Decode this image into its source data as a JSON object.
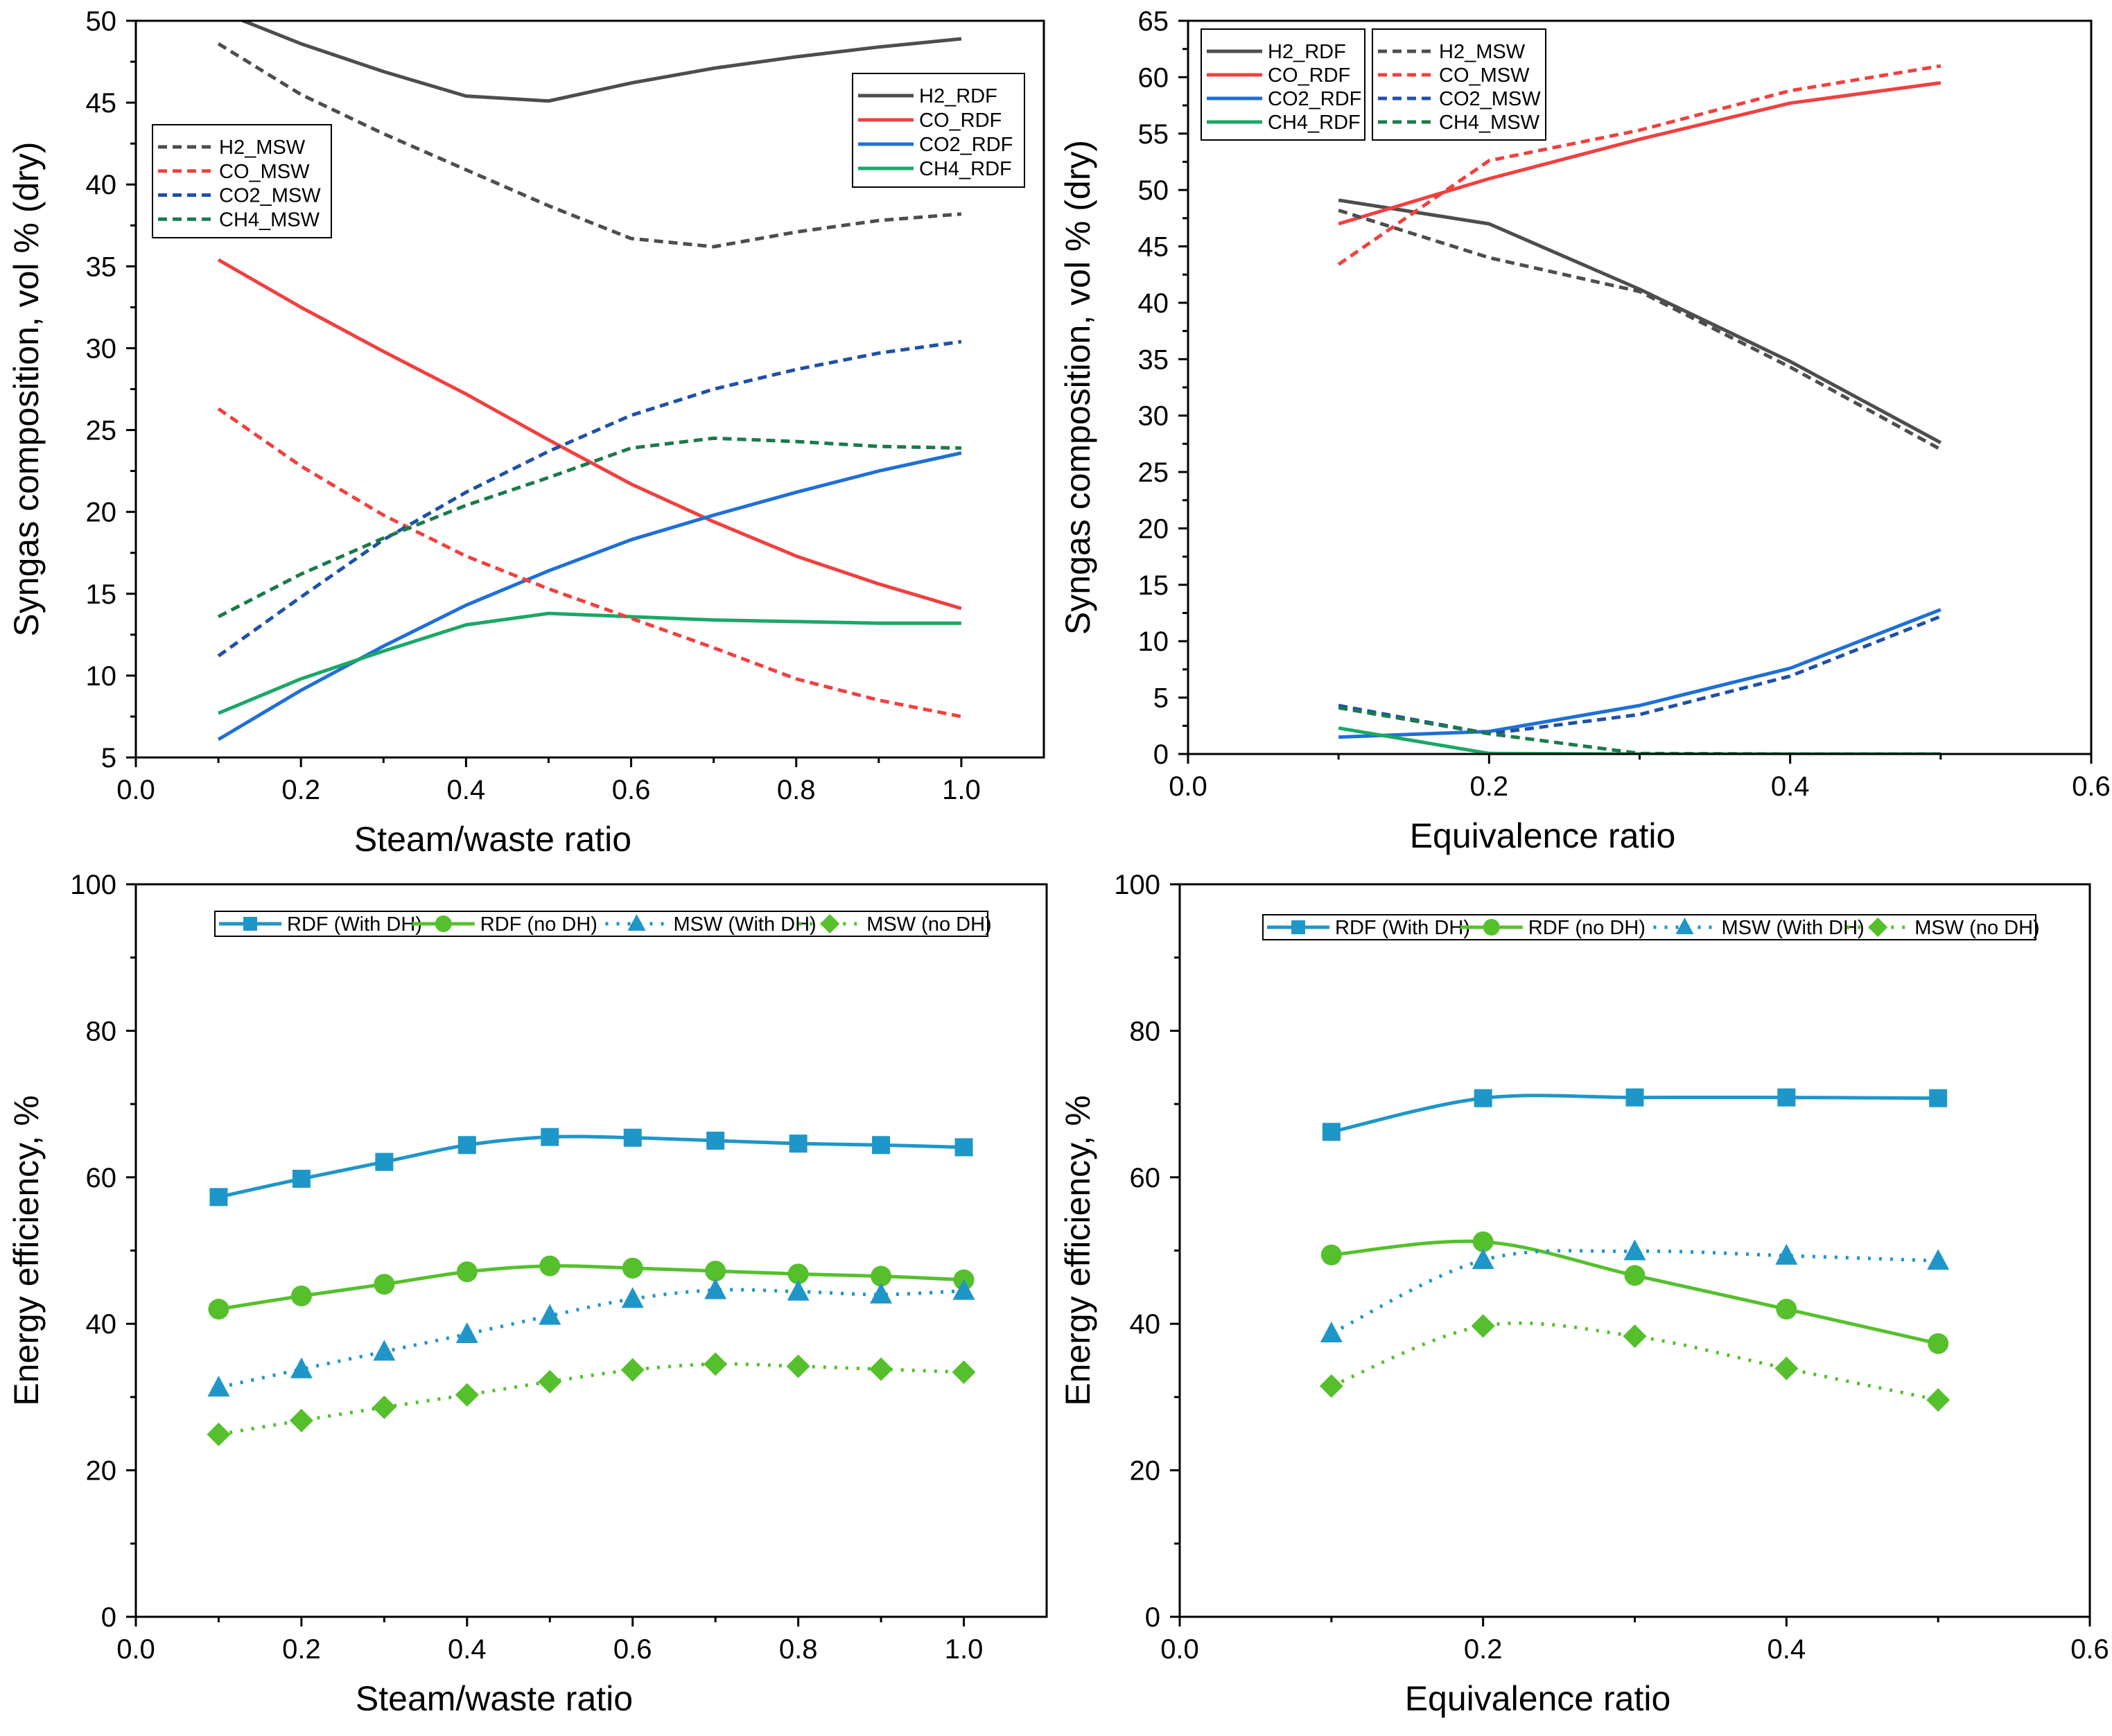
{
  "chart_data": [
    {
      "id": "a",
      "type": "line",
      "xlabel": "Steam/waste ratio",
      "ylabel": "Syngas composition, vol % (dry)",
      "xlim": [
        0,
        1.1
      ],
      "ylim": [
        5,
        50
      ],
      "xticks": [
        "0.0",
        "0.2",
        "0.4",
        "0.6",
        "0.8",
        "1.0"
      ],
      "xtick_values": [
        0,
        0.2,
        0.4,
        0.6,
        0.8,
        1.0
      ],
      "yticks": [
        "5",
        "10",
        "15",
        "20",
        "25",
        "30",
        "35",
        "40",
        "45",
        "50"
      ],
      "ytick_values": [
        5,
        10,
        15,
        20,
        25,
        30,
        35,
        40,
        45,
        50
      ],
      "x": [
        0.1,
        0.2,
        0.3,
        0.4,
        0.5,
        0.6,
        0.7,
        0.8,
        0.9,
        1.0
      ],
      "series": [
        {
          "name": "H2_RDF",
          "color": "#4d4d4d",
          "dash": "solid",
          "values": [
            50.6,
            48.6,
            46.9,
            45.4,
            45.1,
            46.2,
            47.1,
            47.8,
            48.4,
            48.9
          ]
        },
        {
          "name": "CO_RDF",
          "color": "#f04040",
          "dash": "solid",
          "values": [
            35.4,
            32.5,
            29.8,
            27.2,
            24.4,
            21.7,
            19.4,
            17.3,
            15.6,
            14.1
          ]
        },
        {
          "name": "CO2_RDF",
          "color": "#1f6fd6",
          "dash": "solid",
          "values": [
            6.1,
            9.1,
            11.8,
            14.3,
            16.4,
            18.3,
            19.8,
            21.2,
            22.5,
            23.6
          ]
        },
        {
          "name": "CH4_RDF",
          "color": "#1aa866",
          "dash": "solid",
          "values": [
            7.7,
            9.8,
            11.5,
            13.1,
            13.8,
            13.6,
            13.4,
            13.3,
            13.2,
            13.2
          ]
        },
        {
          "name": "H2_MSW",
          "color": "#4d4d4d",
          "dash": "dashed",
          "values": [
            48.6,
            45.5,
            43.1,
            40.9,
            38.7,
            36.7,
            36.2,
            37.1,
            37.8,
            38.2
          ]
        },
        {
          "name": "CO_MSW",
          "color": "#f04040",
          "dash": "dashed",
          "values": [
            26.3,
            22.8,
            19.8,
            17.3,
            15.3,
            13.5,
            11.7,
            9.8,
            8.5,
            7.5
          ]
        },
        {
          "name": "CO2_MSW",
          "color": "#1f50a8",
          "dash": "dashed",
          "values": [
            11.2,
            14.8,
            18.3,
            21.2,
            23.7,
            25.9,
            27.5,
            28.7,
            29.7,
            30.4
          ]
        },
        {
          "name": "CH4_MSW",
          "color": "#1a7a4a",
          "dash": "dashed",
          "values": [
            13.6,
            16.2,
            18.4,
            20.4,
            22.1,
            23.9,
            24.5,
            24.3,
            24.0,
            23.9
          ]
        }
      ],
      "legends": [
        {
          "entries": [
            "H2_RDF",
            "CO_RDF",
            "CO2_RDF",
            "CH4_RDF"
          ],
          "position": "top-right"
        },
        {
          "entries": [
            "H2_MSW",
            "CO_MSW",
            "CO2_MSW",
            "CH4_MSW"
          ],
          "position": "upper-left"
        }
      ]
    },
    {
      "id": "b",
      "type": "line",
      "xlabel": "Equivalence ratio",
      "ylabel": "Syngas composition, vol % (dry)",
      "xlim": [
        0,
        0.6
      ],
      "ylim": [
        0,
        65
      ],
      "xticks": [
        "0.0",
        "0.2",
        "0.4",
        "0.6"
      ],
      "xtick_values": [
        0,
        0.2,
        0.4,
        0.6
      ],
      "yticks": [
        "0",
        "5",
        "10",
        "15",
        "20",
        "25",
        "30",
        "35",
        "40",
        "45",
        "50",
        "55",
        "60",
        "65"
      ],
      "ytick_values": [
        0,
        5,
        10,
        15,
        20,
        25,
        30,
        35,
        40,
        45,
        50,
        55,
        60,
        65
      ],
      "x": [
        0.1,
        0.2,
        0.3,
        0.4,
        0.5
      ],
      "series": [
        {
          "name": "H2_RDF",
          "color": "#4d4d4d",
          "dash": "solid",
          "values": [
            49.1,
            47.0,
            41.2,
            34.8,
            27.6
          ]
        },
        {
          "name": "CO_RDF",
          "color": "#f04040",
          "dash": "solid",
          "values": [
            47.0,
            51.0,
            54.5,
            57.7,
            59.5
          ]
        },
        {
          "name": "CO2_RDF",
          "color": "#1f6fd6",
          "dash": "solid",
          "values": [
            1.5,
            2.0,
            4.3,
            7.6,
            12.8
          ]
        },
        {
          "name": "CH4_RDF",
          "color": "#1aa866",
          "dash": "solid",
          "values": [
            2.3,
            0.05,
            0,
            0,
            0
          ]
        },
        {
          "name": "H2_MSW",
          "color": "#4d4d4d",
          "dash": "dashed",
          "values": [
            48.2,
            44.0,
            41.0,
            34.3,
            27.0
          ]
        },
        {
          "name": "CO_MSW",
          "color": "#f04040",
          "dash": "dashed",
          "values": [
            43.4,
            52.6,
            55.3,
            58.8,
            61.0
          ]
        },
        {
          "name": "CO2_MSW",
          "color": "#1f50a8",
          "dash": "dashed",
          "values": [
            4.3,
            1.8,
            3.5,
            6.9,
            12.2
          ]
        },
        {
          "name": "CH4_MSW",
          "color": "#1a7a4a",
          "dash": "dashed",
          "values": [
            4.1,
            1.8,
            0.05,
            0,
            0
          ]
        }
      ],
      "legends": [
        {
          "entries": [
            "H2_RDF",
            "CO_RDF",
            "CO2_RDF",
            "CH4_RDF"
          ],
          "position": "top-left"
        },
        {
          "entries": [
            "H2_MSW",
            "CO_MSW",
            "CO2_MSW",
            "CH4_MSW"
          ],
          "position": "top-center"
        }
      ]
    },
    {
      "id": "c",
      "type": "line",
      "xlabel": "Steam/waste ratio",
      "ylabel": "Energy efficiency, %",
      "xlim": [
        0,
        1.1
      ],
      "ylim": [
        0,
        100
      ],
      "xticks": [
        "0.0",
        "0.2",
        "0.4",
        "0.6",
        "0.8",
        "1.0"
      ],
      "xtick_values": [
        0,
        0.2,
        0.4,
        0.6,
        0.8,
        1.0
      ],
      "yticks": [
        "0",
        "20",
        "40",
        "60",
        "80",
        "100"
      ],
      "ytick_values": [
        0,
        20,
        40,
        60,
        80,
        100
      ],
      "x": [
        0.1,
        0.2,
        0.3,
        0.4,
        0.5,
        0.6,
        0.7,
        0.8,
        0.9,
        1.0
      ],
      "series": [
        {
          "name": "RDF (With DH)",
          "color": "#1e96c8",
          "marker_color": "#1e96c8",
          "dash": "solid",
          "marker": "square",
          "values": [
            57.3,
            59.8,
            62.1,
            64.4,
            65.5,
            65.4,
            65.0,
            64.6,
            64.4,
            64.1
          ]
        },
        {
          "name": "RDF (no DH)",
          "color": "#55c02c",
          "marker_color": "#55c02c",
          "dash": "solid",
          "marker": "circle",
          "values": [
            42.0,
            43.8,
            45.4,
            47.1,
            47.9,
            47.6,
            47.2,
            46.8,
            46.5,
            46.0
          ]
        },
        {
          "name": "MSW (With DH)",
          "color": "#1e96c8",
          "marker_color": "#1e96c8",
          "dash": "dotted",
          "marker": "triangle",
          "values": [
            31.3,
            33.8,
            36.2,
            38.6,
            41.1,
            43.4,
            44.6,
            44.4,
            44.0,
            44.5
          ]
        },
        {
          "name": "MSW (no DH)",
          "color": "#55c02c",
          "marker_color": "#55c02c",
          "dash": "dotted",
          "marker": "diamond",
          "values": [
            24.9,
            26.8,
            28.6,
            30.3,
            32.1,
            33.7,
            34.5,
            34.2,
            33.8,
            33.4
          ]
        }
      ],
      "legends": [
        {
          "entries": [
            "RDF (With DH)",
            "RDF (no DH)",
            "MSW (With DH)",
            "MSW (no DH)"
          ],
          "position": "top"
        }
      ]
    },
    {
      "id": "d",
      "type": "line",
      "xlabel": "Equivalence ratio",
      "ylabel": "Energy efficiency, %",
      "xlim": [
        0,
        0.6
      ],
      "ylim": [
        0,
        100
      ],
      "xticks": [
        "0.0",
        "0.2",
        "0.4",
        "0.6"
      ],
      "xtick_values": [
        0,
        0.2,
        0.4,
        0.6
      ],
      "yticks": [
        "0",
        "20",
        "40",
        "60",
        "80",
        "100"
      ],
      "ytick_values": [
        0,
        20,
        40,
        60,
        80,
        100
      ],
      "x": [
        0.1,
        0.2,
        0.3,
        0.4,
        0.5
      ],
      "series": [
        {
          "name": "RDF (With DH)",
          "color": "#1e96c8",
          "marker_color": "#1e96c8",
          "dash": "solid",
          "marker": "square",
          "values": [
            66.2,
            70.8,
            70.9,
            70.9,
            70.8
          ]
        },
        {
          "name": "RDF (no DH)",
          "color": "#55c02c",
          "marker_color": "#55c02c",
          "dash": "solid",
          "marker": "circle",
          "values": [
            49.4,
            51.2,
            46.6,
            42.0,
            37.3
          ]
        },
        {
          "name": "MSW (With DH)",
          "color": "#1e96c8",
          "marker_color": "#1e96c8",
          "dash": "dotted",
          "marker": "triangle",
          "values": [
            38.7,
            48.7,
            49.9,
            49.3,
            48.6
          ]
        },
        {
          "name": "MSW (no DH)",
          "color": "#55c02c",
          "marker_color": "#55c02c",
          "dash": "dotted",
          "marker": "diamond",
          "values": [
            31.5,
            39.7,
            38.3,
            33.9,
            29.6
          ]
        }
      ],
      "legends": [
        {
          "entries": [
            "RDF (With DH)",
            "RDF (no DH)",
            "MSW (With DH)",
            "MSW (no DH)"
          ],
          "position": "top"
        }
      ]
    }
  ]
}
